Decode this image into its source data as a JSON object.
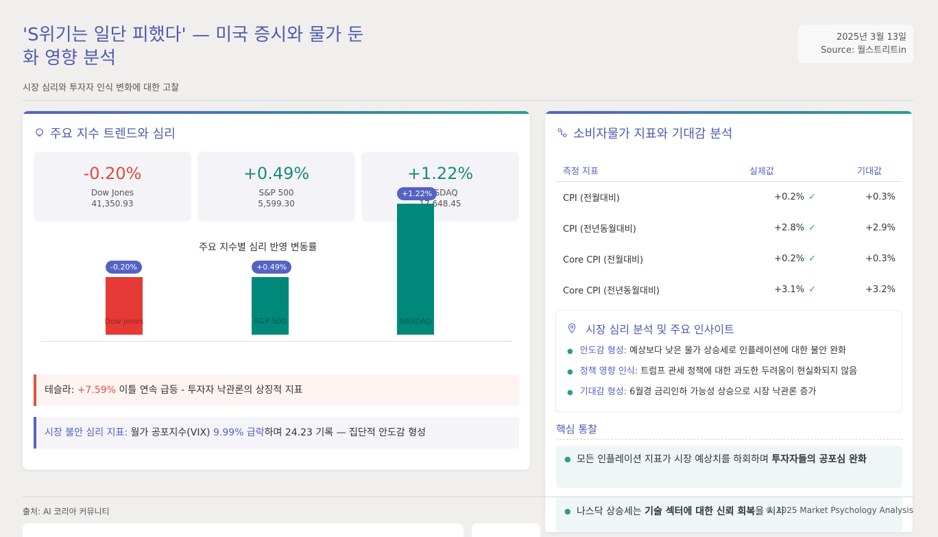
{
  "header": {
    "title": "'S위기는 일단 피했다' — 미국 증시와 물가 둔화 영향 분석",
    "subtitle": "시장 심리와 투자자 인식 변화에 대한 고찰",
    "date": "2025년 3월 13일",
    "source": "Source: 월스트리트in"
  },
  "left_card": {
    "title": "주요 지수 트렌드와 심리",
    "icon": "lightbulb-icon",
    "stats": [
      {
        "value": "-0.20%",
        "name": "Dow Jones",
        "price": "41,350.93",
        "color": "#e5473c"
      },
      {
        "value": "+0.49%",
        "name": "S&P 500",
        "price": "5,599.30",
        "color": "#1b8a7b"
      },
      {
        "value": "+1.22%",
        "name": "NASDAQ",
        "price": "17,648.45",
        "color": "#1b8a7b"
      }
    ],
    "notes": [
      {
        "label": "테슬라:",
        "highlight": "+7.59%",
        "text": " 이틀 연속 급등 - 투자자 낙관론의 상징적 지표"
      },
      {
        "label": "시장 불안 심리 지표:",
        "pre": " 월가 공포지수(VIX) ",
        "highlight": "9.99% 급락",
        "text": "하며 24.23 기록 — 집단적 안도감 형성"
      }
    ]
  },
  "chart_data": {
    "type": "bar",
    "title": "주요 지수별 심리 반영 변동률",
    "categories": [
      "Dow Jones",
      "S&P 500",
      "NASDAQ"
    ],
    "values": [
      -0.2,
      0.49,
      1.22
    ],
    "data_labels": [
      "-0.20%",
      "+0.49%",
      "+1.22%"
    ],
    "colors": [
      "#e53935",
      "#00897b",
      "#00897b"
    ],
    "grid": false
  },
  "right_card": {
    "title": "소비자물가 지표와 기대감 분석",
    "icon": "route-icon",
    "table": {
      "headers": [
        "측정 지표",
        "실제값",
        "기대값"
      ],
      "rows": [
        {
          "metric": "CPI (전월대비)",
          "actual": "+0.2%",
          "expected": "+0.3%"
        },
        {
          "metric": "CPI (전년동월대비)",
          "actual": "+2.8%",
          "expected": "+2.9%"
        },
        {
          "metric": "Core CPI (전월대비)",
          "actual": "+0.2%",
          "expected": "+0.3%"
        },
        {
          "metric": "Core CPI (전년동월대비)",
          "actual": "+3.1%",
          "expected": "+3.2%"
        }
      ],
      "check": "✓"
    },
    "insight": {
      "title": "시장 심리 분석 및 주요 인사이트",
      "icon": "pin-icon",
      "items": [
        {
          "k": "안도감 형성:",
          "v": " 예상보다 낮은 물가 상승세로 인플레이션에 대한 불안 완화"
        },
        {
          "k": "정책 영향 인식:",
          "v": " 트럼프 관세 정책에 대한 과도한 두려움이 현실화되지 않음"
        },
        {
          "k": "기대감 형성:",
          "v": " 6월경 금리인하 가능성 상승으로 시장 낙관론 증가"
        }
      ]
    },
    "core": {
      "title": "핵심 통찰",
      "items": [
        {
          "pre": "모든 인플레이션 지표가 시장 예상치를 하회하며 ",
          "bold": "투자자들의 공포심 완화",
          "post": ""
        },
        {
          "pre": "나스닥 상승세는 ",
          "bold": "기술 섹터에 대한 신뢰 회복",
          "post": "을 시사"
        }
      ]
    }
  },
  "footer": {
    "left": "출처: AI 코리아 커뮤니티",
    "right": "© 2025 Market Psychology Analysis"
  }
}
